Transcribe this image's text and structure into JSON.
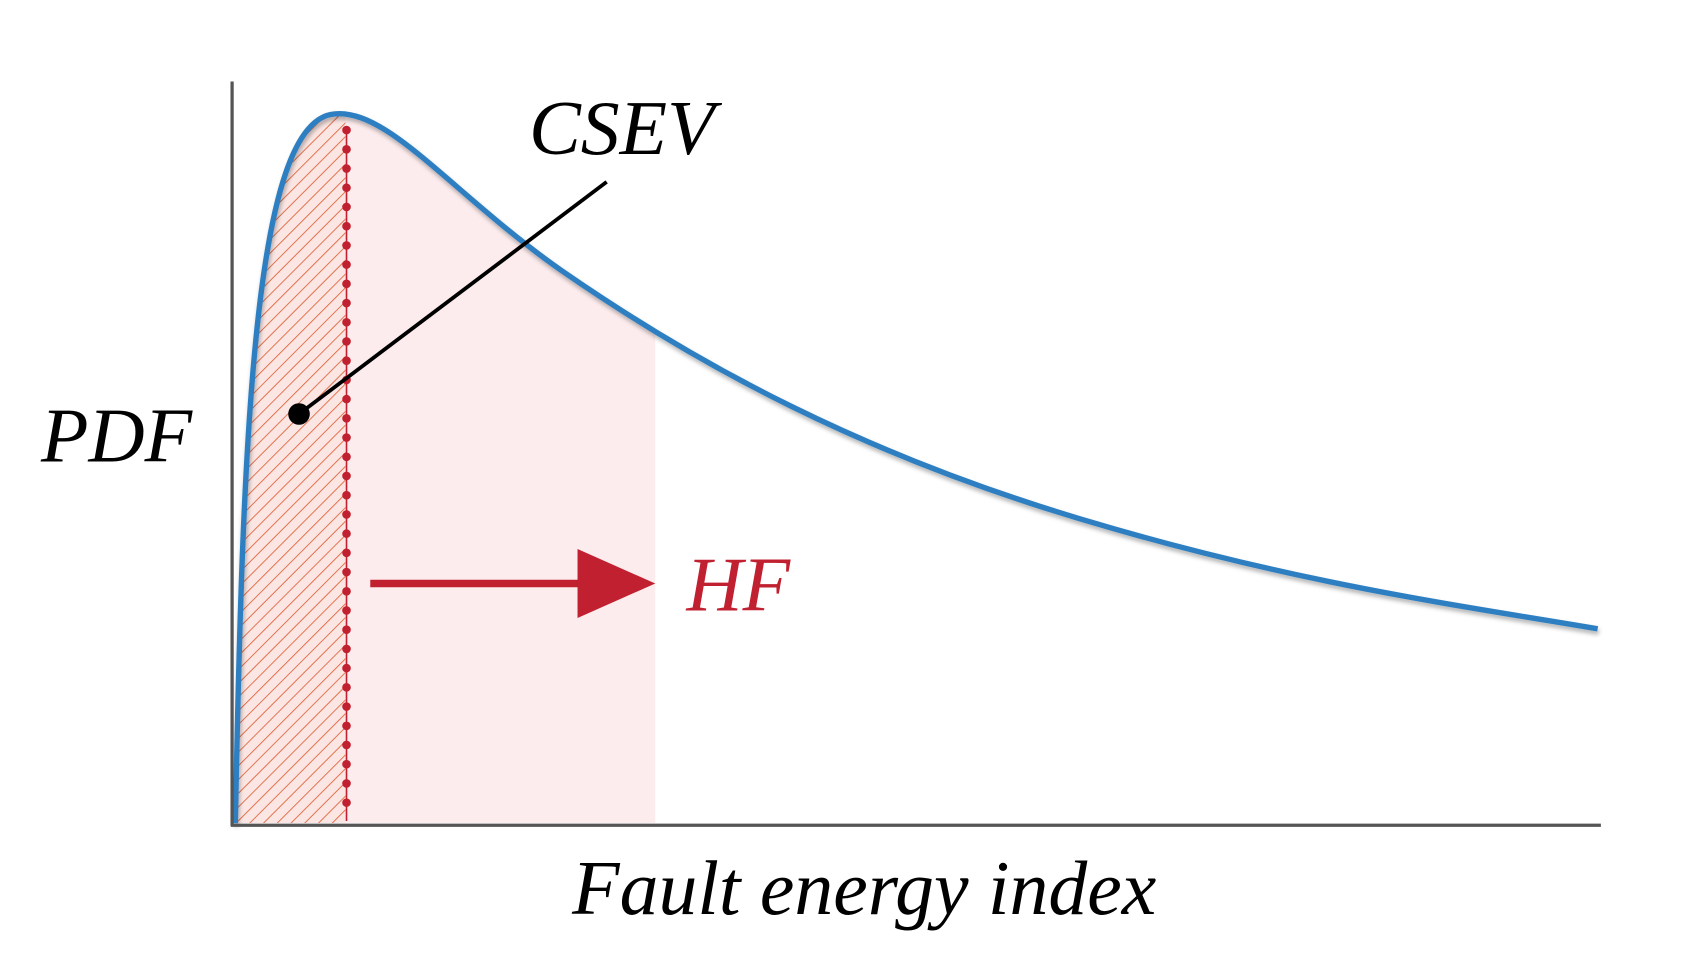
{
  "labels": {
    "csev": "CSEV",
    "y_axis": "PDF",
    "hf": "HF",
    "x_axis": "Fault energy index"
  }
}
